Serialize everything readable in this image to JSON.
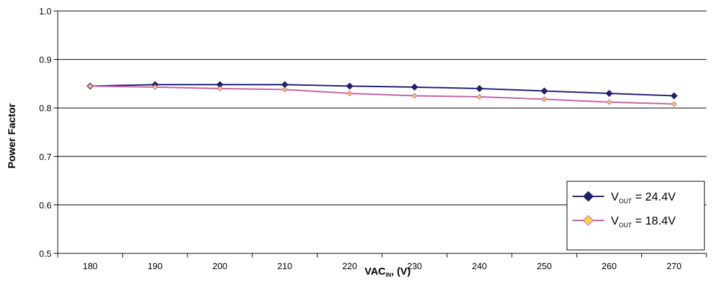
{
  "chart_data": {
    "type": "line",
    "title": "",
    "ylabel": "Power Factor",
    "xlabel": {
      "main": "VAC",
      "sub": "IN",
      "suffix": ", (V)"
    },
    "x": [
      180,
      190,
      200,
      210,
      220,
      230,
      240,
      250,
      260,
      270
    ],
    "ylim": [
      0.5,
      1.0
    ],
    "yticks": [
      "0.5",
      "0.6",
      "0.7",
      "0.8",
      "0.9",
      "1.0"
    ],
    "grid": true,
    "legend_position": "bottom-right",
    "series": [
      {
        "name_main": "V",
        "name_sub": "OUT",
        "name_suffix": " = 24.4V",
        "values": [
          0.845,
          0.848,
          0.848,
          0.848,
          0.845,
          0.843,
          0.84,
          0.835,
          0.83,
          0.825
        ],
        "color": "#1f1f6e",
        "marker_fill": "#1f1f6e",
        "marker_stroke": "#1f1f6e"
      },
      {
        "name_main": "V",
        "name_sub": "OUT",
        "name_suffix": " = 18.4V",
        "values": [
          0.845,
          0.843,
          0.84,
          0.838,
          0.83,
          0.825,
          0.823,
          0.818,
          0.812,
          0.808
        ],
        "color": "#c060a8",
        "marker_fill": "#ffd24a",
        "marker_stroke": "#c060a8"
      }
    ]
  }
}
